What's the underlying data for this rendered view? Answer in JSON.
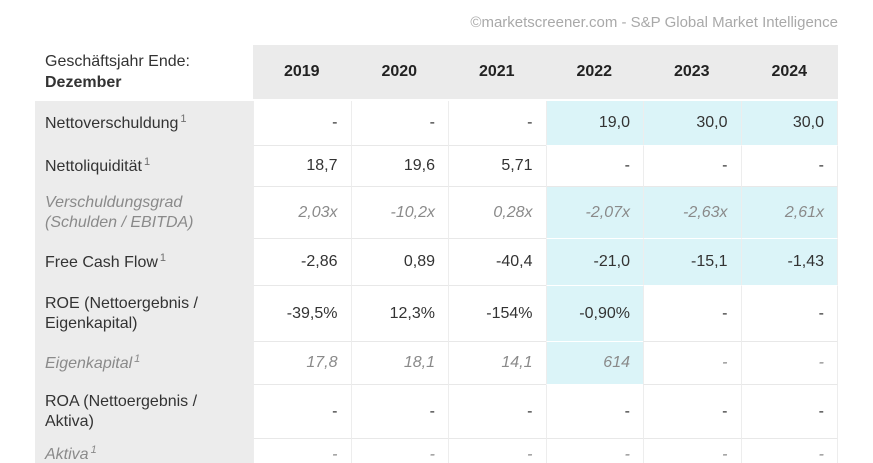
{
  "watermark": "©marketscreener.com - S&P Global Market Intelligence",
  "table": {
    "header": {
      "label_line1": "Geschäftsjahr Ende:",
      "label_line2": "Dezember",
      "years": [
        "2019",
        "2020",
        "2021",
        "2022",
        "2023",
        "2024"
      ]
    },
    "rows": [
      {
        "label": "Nettoverschuldung",
        "superscript": "1",
        "muted": false,
        "values": [
          "-",
          "-",
          "-",
          "19,0",
          "30,0",
          "30,0"
        ],
        "highlight": [
          false,
          false,
          false,
          true,
          true,
          true
        ]
      },
      {
        "label": "Nettoliquidität",
        "superscript": "1",
        "muted": false,
        "values": [
          "18,7",
          "19,6",
          "5,71",
          "-",
          "-",
          "-"
        ],
        "highlight": [
          false,
          false,
          false,
          false,
          false,
          false
        ]
      },
      {
        "label": "Verschuldungsgrad (Schulden / EBITDA)",
        "superscript": "",
        "muted": true,
        "values": [
          "2,03x",
          "-10,2x",
          "0,28x",
          "-2,07x",
          "-2,63x",
          "2,61x"
        ],
        "highlight": [
          false,
          false,
          false,
          true,
          true,
          true
        ]
      },
      {
        "label": "Free Cash Flow",
        "superscript": "1",
        "muted": false,
        "values": [
          "-2,86",
          "0,89",
          "-40,4",
          "-21,0",
          "-15,1",
          "-1,43"
        ],
        "highlight": [
          false,
          false,
          false,
          true,
          true,
          true
        ]
      },
      {
        "label": "ROE (Nettoergebnis / Eigenkapital)",
        "superscript": "",
        "muted": false,
        "values": [
          "-39,5%",
          "12,3%",
          "-154%",
          "-0,90%",
          "-",
          "-"
        ],
        "highlight": [
          false,
          false,
          false,
          true,
          false,
          false
        ]
      },
      {
        "label": "Eigenkapital",
        "superscript": "1",
        "muted": true,
        "values": [
          "17,8",
          "18,1",
          "14,1",
          "614",
          "-",
          "-"
        ],
        "highlight": [
          false,
          false,
          false,
          true,
          false,
          false
        ]
      },
      {
        "label": "ROA (Nettoergebnis / Aktiva)",
        "superscript": "",
        "muted": false,
        "values": [
          "-",
          "-",
          "-",
          "-",
          "-",
          "-"
        ],
        "highlight": [
          false,
          false,
          false,
          false,
          false,
          false
        ]
      },
      {
        "label": "Aktiva",
        "superscript": "1",
        "muted": true,
        "values": [
          "-",
          "-",
          "-",
          "-",
          "-",
          "-"
        ],
        "highlight": [
          false,
          false,
          false,
          false,
          false,
          false
        ]
      }
    ]
  },
  "colors": {
    "highlight_cyan": "#dbf4f8",
    "header_gray": "#ebebeb",
    "label_gray": "#ececec",
    "dark_text": "#333333",
    "muted_text": "#8a8a8a",
    "watermark": "#a9a9a9"
  }
}
